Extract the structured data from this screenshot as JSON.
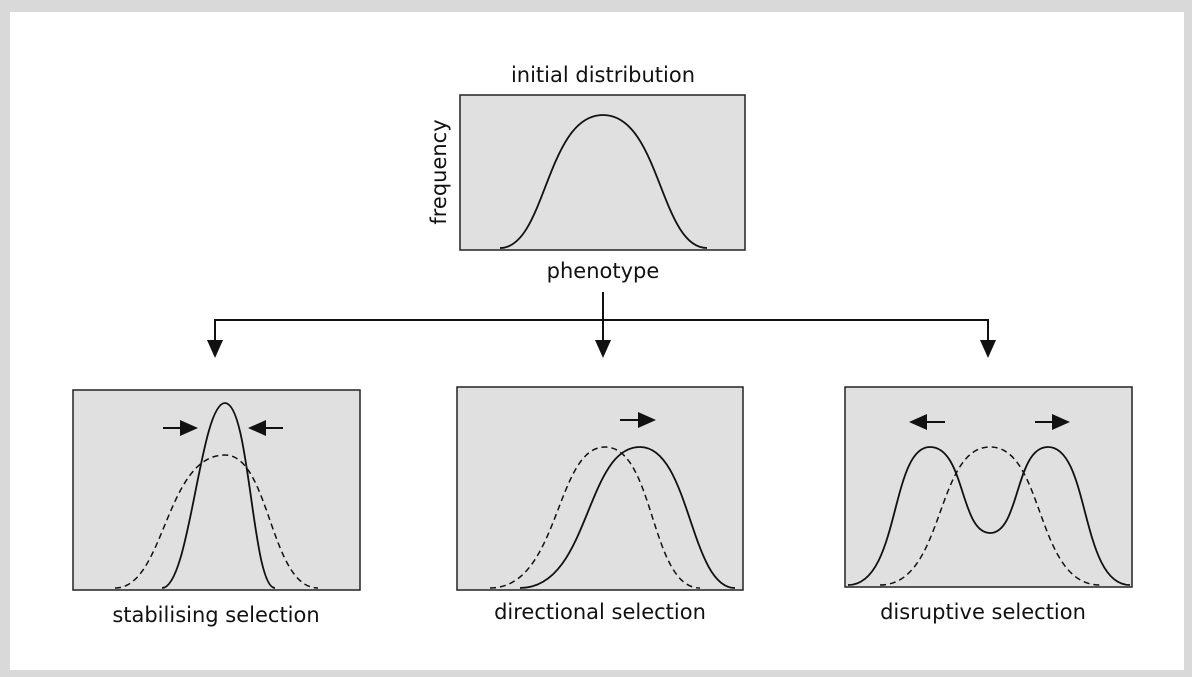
{
  "top": {
    "title": "initial distribution",
    "y_label": "frequency",
    "x_label": "phenotype"
  },
  "panels": [
    {
      "label": "stabilising selection"
    },
    {
      "label": "directional selection"
    },
    {
      "label": "disruptive selection"
    }
  ]
}
